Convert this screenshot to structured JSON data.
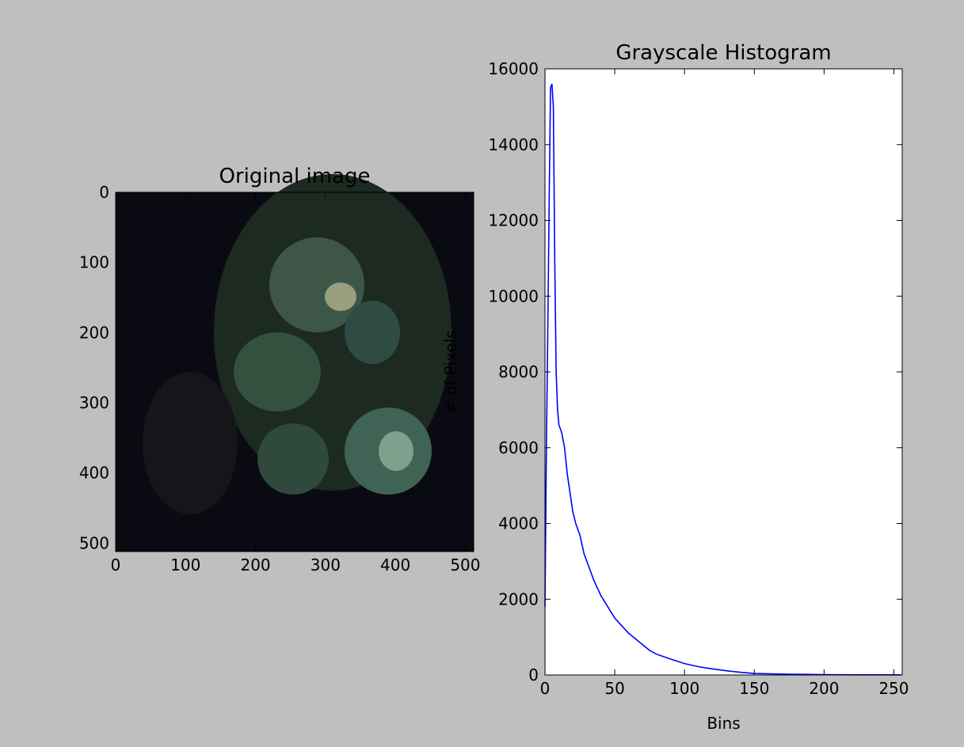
{
  "chart_data": [
    {
      "type": "image",
      "title": "Original image",
      "xlim": [
        0,
        512
      ],
      "ylim": [
        512,
        0
      ],
      "xticks": [
        0,
        100,
        200,
        300,
        400,
        500
      ],
      "yticks": [
        0,
        100,
        200,
        300,
        400,
        500
      ]
    },
    {
      "type": "line",
      "title": "Grayscale Histogram",
      "x_label": "Bins",
      "y_label": "# of Pixels",
      "x": [
        0,
        1,
        2,
        3,
        4,
        5,
        6,
        7,
        8,
        9,
        10,
        12,
        14,
        16,
        18,
        20,
        22,
        25,
        28,
        30,
        35,
        40,
        45,
        50,
        55,
        60,
        65,
        70,
        75,
        80,
        90,
        100,
        110,
        120,
        130,
        140,
        150,
        175,
        200,
        225,
        255
      ],
      "values": [
        1800,
        6000,
        9000,
        12500,
        15500,
        15600,
        15000,
        11000,
        8000,
        7000,
        6600,
        6400,
        6000,
        5300,
        4800,
        4300,
        4000,
        3700,
        3200,
        3000,
        2500,
        2100,
        1800,
        1500,
        1300,
        1100,
        950,
        800,
        650,
        550,
        420,
        300,
        220,
        160,
        110,
        70,
        40,
        20,
        10,
        5,
        5
      ],
      "color": "#0000ff",
      "xlim": [
        0,
        256
      ],
      "ylim": [
        0,
        16000
      ],
      "xticks": [
        0,
        50,
        100,
        150,
        200,
        250
      ],
      "yticks": [
        0,
        2000,
        4000,
        6000,
        8000,
        10000,
        12000,
        14000,
        16000
      ]
    }
  ]
}
